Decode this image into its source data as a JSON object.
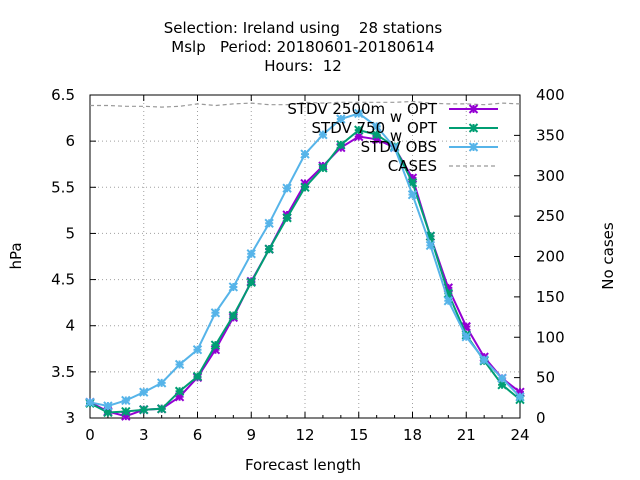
{
  "title_lines": [
    "Selection: Ireland using    28 stations",
    "Mslp   Period: 20180601-20180614",
    "Hours:  12"
  ],
  "chart_data": {
    "type": "line",
    "xlabel": "Forecast length",
    "ylabel": "hPa",
    "y2label": "No cases",
    "xlim": [
      0,
      24
    ],
    "ylim": [
      3,
      6.5
    ],
    "y2lim": [
      0,
      400
    ],
    "xticks": [
      "0",
      "3",
      "6",
      "9",
      "12",
      "15",
      "18",
      "21",
      "24"
    ],
    "yticks": [
      "3",
      "3.5",
      "4",
      "4.5",
      "5",
      "5.5",
      "6",
      "6.5"
    ],
    "y2ticks": [
      "0",
      "50",
      "100",
      "150",
      "200",
      "250",
      "300",
      "350",
      "400"
    ],
    "grid": true,
    "legend_position": "top-right",
    "x": [
      0,
      1,
      2,
      3,
      4,
      5,
      6,
      7,
      8,
      9,
      10,
      11,
      12,
      13,
      14,
      15,
      16,
      17,
      18,
      19,
      20,
      21,
      22,
      23,
      24
    ],
    "series": [
      {
        "name": "STDV 2500m",
        "name_suffix": "OPT",
        "subscript": "w",
        "axis": "left",
        "color": "#9400d3",
        "marker": "x",
        "values": [
          3.17,
          3.07,
          3.02,
          3.09,
          3.1,
          3.23,
          3.44,
          3.74,
          4.09,
          4.48,
          4.83,
          5.2,
          5.54,
          5.73,
          5.93,
          6.05,
          6.02,
          5.93,
          5.6,
          4.97,
          4.41,
          3.99,
          3.66,
          3.43,
          3.28
        ]
      },
      {
        "name": "STDV 750",
        "name_suffix": "OPT",
        "subscript": "w",
        "axis": "left",
        "color": "#009e73",
        "marker": "x",
        "values": [
          3.16,
          3.06,
          3.07,
          3.09,
          3.1,
          3.29,
          3.45,
          3.79,
          4.11,
          4.47,
          4.83,
          5.17,
          5.5,
          5.71,
          5.96,
          6.12,
          6.07,
          5.94,
          5.55,
          4.97,
          4.35,
          3.9,
          3.62,
          3.36,
          3.2
        ]
      },
      {
        "name": "STDV OBS",
        "axis": "left",
        "color": "#56b4e9",
        "marker": "x",
        "values": [
          3.17,
          3.13,
          3.19,
          3.28,
          3.38,
          3.58,
          3.74,
          4.14,
          4.42,
          4.78,
          5.11,
          5.49,
          5.86,
          6.07,
          6.24,
          6.3,
          6.16,
          5.93,
          5.42,
          4.87,
          4.27,
          3.88,
          3.63,
          3.43,
          3.23
        ]
      },
      {
        "name": "CASES",
        "axis": "right",
        "color": "#999999",
        "dashed": true,
        "values": [
          387,
          387,
          386,
          386,
          385,
          386,
          389,
          387,
          389,
          390,
          388,
          388,
          391,
          390,
          391,
          391,
          391,
          391,
          392,
          390,
          389,
          389,
          388,
          390,
          389
        ]
      }
    ]
  }
}
